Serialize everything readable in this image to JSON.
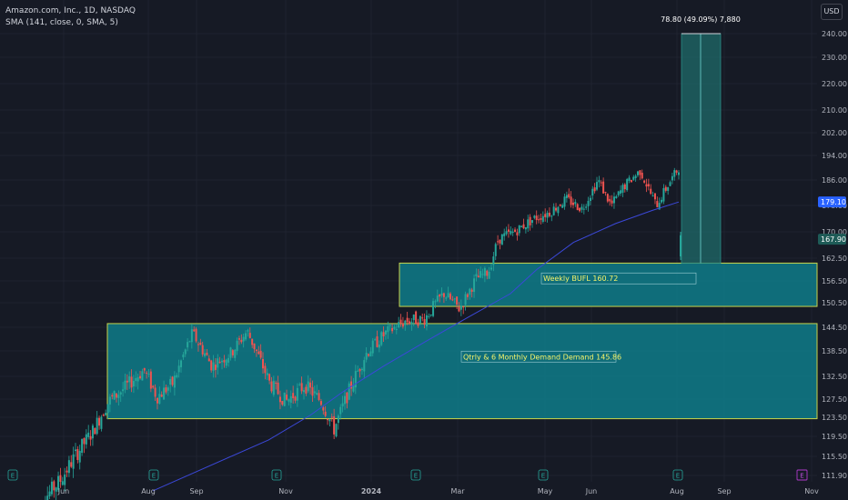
{
  "legend": {
    "symbol": "Amazon.com, Inc., 1D, NASDAQ",
    "indicator": "SMA (141, close, 0, SMA, 5)"
  },
  "currency_button": "USD",
  "colors": {
    "background": "#161a25",
    "up": "#26a69a",
    "down": "#ef5350",
    "sma": "#3b48d8",
    "zone_fill": "#0e7d89",
    "zone_border": "#c9d44a",
    "measure": "#1f6b6a"
  },
  "chart_data": {
    "type": "candlestick",
    "y_axis": {
      "range": [
        110.5,
        244
      ],
      "ticks": [
        111.9,
        115.5,
        119.5,
        123.5,
        127.5,
        132.5,
        138.5,
        144.5,
        150.5,
        156.5,
        162.5,
        170.0,
        178.0,
        186.0,
        194.0,
        202.0,
        210.0,
        220.0,
        230.0,
        240.0
      ]
    },
    "x_axis": {
      "labels": [
        "Jun",
        "Aug",
        "Sep",
        "Nov",
        "2024",
        "Mar",
        "May",
        "Jun",
        "Aug",
        "Sep",
        "Nov"
      ]
    },
    "price_labels": [
      {
        "value": 179.1,
        "text": "179.10",
        "color": "#2962ff"
      },
      {
        "value": 167.9,
        "text": "167.90",
        "color": "#1e5b57"
      }
    ],
    "zones": [
      {
        "label": "Weekly BUFL 160.72",
        "top": 161.2,
        "bottom": 149.6
      },
      {
        "label": "Qtrly & 6 Monthly Demand Demand 145.86",
        "top": 145.4,
        "bottom": 123.2
      }
    ],
    "measure": {
      "label": "78.80 (49.09%) 7,880",
      "from": 161.2,
      "to": 240.0
    },
    "earnings_markers": [
      "E",
      "E",
      "E",
      "E",
      "E",
      "E",
      "E"
    ],
    "future_marker": "E",
    "sma_series": [
      {
        "t": 0.0,
        "v": 109.0
      },
      {
        "t": 0.22,
        "v": 118.8
      },
      {
        "t": 0.3,
        "v": 124.0
      },
      {
        "t": 0.36,
        "v": 129.0
      },
      {
        "t": 0.44,
        "v": 135.0
      },
      {
        "t": 0.52,
        "v": 141.0
      },
      {
        "t": 0.6,
        "v": 147.0
      },
      {
        "t": 0.68,
        "v": 153.0
      },
      {
        "t": 0.73,
        "v": 159.5
      },
      {
        "t": 0.8,
        "v": 167.0
      },
      {
        "t": 0.88,
        "v": 172.5
      },
      {
        "t": 0.95,
        "v": 176.5
      },
      {
        "t": 1.0,
        "v": 179.1
      }
    ],
    "close_path": [
      {
        "t": 0.0,
        "v": 105.5
      },
      {
        "t": 0.04,
        "v": 111.0
      },
      {
        "t": 0.065,
        "v": 116.0
      },
      {
        "t": 0.09,
        "v": 120.5
      },
      {
        "t": 0.115,
        "v": 127.0
      },
      {
        "t": 0.14,
        "v": 130.0
      },
      {
        "t": 0.17,
        "v": 134.0
      },
      {
        "t": 0.19,
        "v": 128.0
      },
      {
        "t": 0.215,
        "v": 131.0
      },
      {
        "t": 0.245,
        "v": 143.0
      },
      {
        "t": 0.275,
        "v": 135.0
      },
      {
        "t": 0.305,
        "v": 138.0
      },
      {
        "t": 0.33,
        "v": 143.5
      },
      {
        "t": 0.365,
        "v": 131.0
      },
      {
        "t": 0.39,
        "v": 127.0
      },
      {
        "t": 0.42,
        "v": 130.5
      },
      {
        "t": 0.445,
        "v": 127.0
      },
      {
        "t": 0.465,
        "v": 121.0
      },
      {
        "t": 0.49,
        "v": 130.0
      },
      {
        "t": 0.515,
        "v": 138.0
      },
      {
        "t": 0.545,
        "v": 143.0
      },
      {
        "t": 0.575,
        "v": 146.0
      },
      {
        "t": 0.605,
        "v": 146.5
      },
      {
        "t": 0.635,
        "v": 153.0
      },
      {
        "t": 0.66,
        "v": 149.0
      },
      {
        "t": 0.685,
        "v": 157.0
      },
      {
        "t": 0.705,
        "v": 159.0
      },
      {
        "t": 0.72,
        "v": 168.0
      },
      {
        "t": 0.745,
        "v": 170.0
      },
      {
        "t": 0.775,
        "v": 174.0
      },
      {
        "t": 0.8,
        "v": 176.0
      },
      {
        "t": 0.825,
        "v": 180.0
      },
      {
        "t": 0.85,
        "v": 177.0
      },
      {
        "t": 0.875,
        "v": 186.0
      },
      {
        "t": 0.895,
        "v": 178.0
      },
      {
        "t": 0.915,
        "v": 184.0
      },
      {
        "t": 0.94,
        "v": 189.0
      },
      {
        "t": 0.965,
        "v": 178.0
      },
      {
        "t": 0.985,
        "v": 185.0
      },
      {
        "t": 1.0,
        "v": 190.0
      }
    ]
  }
}
